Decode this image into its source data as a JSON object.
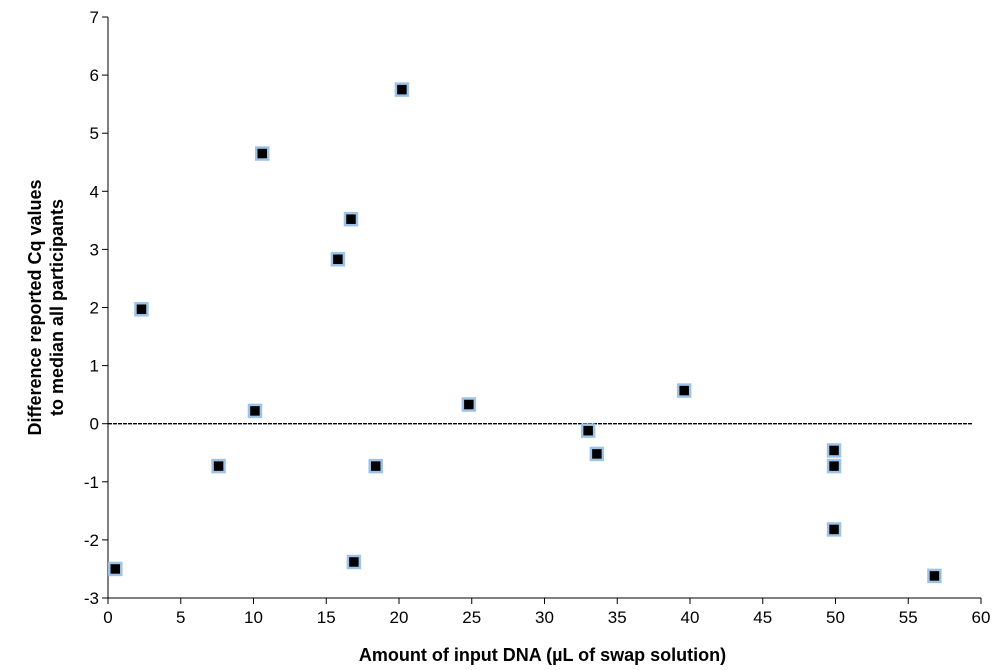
{
  "chart_data": {
    "type": "scatter",
    "title": "",
    "xlabel": "Amount of input DNA (µL of swap solution)",
    "ylabel": [
      "Difference reported Cq values",
      "to median all participants"
    ],
    "xlim": [
      0,
      60
    ],
    "ylim": [
      -3,
      7
    ],
    "xticks": [
      0,
      5,
      10,
      15,
      20,
      25,
      30,
      35,
      40,
      45,
      50,
      55,
      60
    ],
    "yticks": [
      -3,
      -2,
      -1,
      0,
      1,
      2,
      3,
      4,
      5,
      6,
      7
    ],
    "reference_line": {
      "y": 0,
      "style": "dashed"
    },
    "grid": false,
    "legend": "none",
    "marker": {
      "shape": "square",
      "fill": "#000000",
      "edge": "#9DC3E6"
    },
    "series": [
      {
        "points": [
          {
            "x": 0.5,
            "y": -2.5
          },
          {
            "x": 2.3,
            "y": 1.97
          },
          {
            "x": 7.6,
            "y": -0.73
          },
          {
            "x": 10.1,
            "y": 0.22
          },
          {
            "x": 10.6,
            "y": 4.65
          },
          {
            "x": 15.8,
            "y": 2.83
          },
          {
            "x": 16.7,
            "y": 3.52
          },
          {
            "x": 16.9,
            "y": -2.38
          },
          {
            "x": 18.4,
            "y": -0.73
          },
          {
            "x": 20.2,
            "y": 5.75
          },
          {
            "x": 24.8,
            "y": 0.33
          },
          {
            "x": 33.0,
            "y": -0.12
          },
          {
            "x": 33.6,
            "y": -0.52
          },
          {
            "x": 39.6,
            "y": 0.57
          },
          {
            "x": 49.9,
            "y": -0.46
          },
          {
            "x": 49.9,
            "y": -0.73
          },
          {
            "x": 49.9,
            "y": -1.82
          },
          {
            "x": 56.8,
            "y": -2.62
          }
        ]
      }
    ]
  }
}
